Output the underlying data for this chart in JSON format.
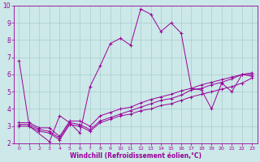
{
  "xlabel": "Windchill (Refroidissement éolien,°C)",
  "background_color": "#cce8e8",
  "grid_color": "#aacccc",
  "line_color": "#990099",
  "xlim": [
    -0.5,
    23.5
  ],
  "ylim": [
    2,
    10
  ],
  "yticks": [
    2,
    3,
    4,
    5,
    6,
    7,
    8,
    9,
    10
  ],
  "xticks": [
    0,
    1,
    2,
    3,
    4,
    5,
    6,
    7,
    8,
    9,
    10,
    11,
    12,
    13,
    14,
    15,
    16,
    17,
    18,
    19,
    20,
    21,
    22,
    23
  ],
  "series": [
    {
      "x": [
        0,
        1,
        3,
        4,
        5,
        6,
        7,
        8,
        9,
        10,
        11,
        12,
        13,
        14,
        15,
        16,
        17,
        18,
        19,
        20,
        21,
        22,
        23
      ],
      "y": [
        6.8,
        3.0,
        2.1,
        3.6,
        3.2,
        2.6,
        5.3,
        6.5,
        7.8,
        8.1,
        7.7,
        9.8,
        9.5,
        8.5,
        9.0,
        8.4,
        5.2,
        5.1,
        4.0,
        5.5,
        5.0,
        6.0,
        5.9
      ]
    },
    {
      "x": [
        0,
        1,
        2,
        3,
        4,
        5,
        6,
        7,
        8,
        9,
        10,
        11,
        12,
        13,
        14,
        15,
        16,
        17,
        18,
        19,
        20,
        21,
        22,
        23
      ],
      "y": [
        3.0,
        3.0,
        2.7,
        2.6,
        2.2,
        3.1,
        3.0,
        2.7,
        3.2,
        3.4,
        3.6,
        3.7,
        3.9,
        4.0,
        4.2,
        4.3,
        4.5,
        4.7,
        4.85,
        5.0,
        5.15,
        5.3,
        5.5,
        5.8
      ]
    },
    {
      "x": [
        0,
        1,
        2,
        3,
        4,
        5,
        6,
        7,
        8,
        9,
        10,
        11,
        12,
        13,
        14,
        15,
        16,
        17,
        18,
        19,
        20,
        21,
        22,
        23
      ],
      "y": [
        3.1,
        3.1,
        2.8,
        2.7,
        2.3,
        3.2,
        3.1,
        2.8,
        3.3,
        3.5,
        3.7,
        3.9,
        4.1,
        4.3,
        4.5,
        4.6,
        4.8,
        5.1,
        5.2,
        5.4,
        5.55,
        5.75,
        6.0,
        6.0
      ]
    },
    {
      "x": [
        0,
        1,
        2,
        3,
        4,
        5,
        6,
        7,
        8,
        9,
        10,
        11,
        12,
        13,
        14,
        15,
        16,
        17,
        18,
        19,
        20,
        21,
        22,
        23
      ],
      "y": [
        3.2,
        3.2,
        2.9,
        2.9,
        2.4,
        3.3,
        3.3,
        3.0,
        3.6,
        3.8,
        4.0,
        4.1,
        4.35,
        4.55,
        4.7,
        4.85,
        5.05,
        5.2,
        5.4,
        5.55,
        5.7,
        5.85,
        6.0,
        6.1
      ]
    }
  ]
}
